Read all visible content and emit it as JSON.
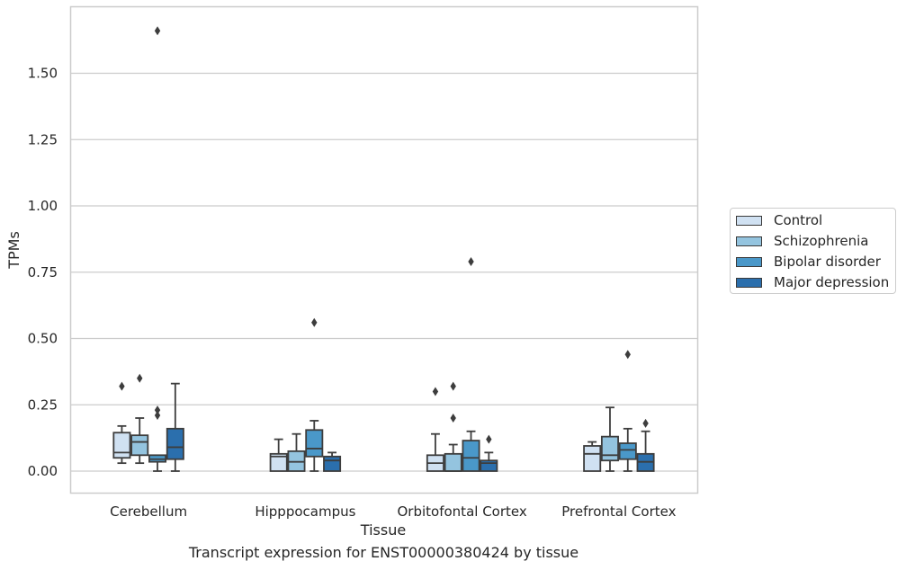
{
  "chart_data": {
    "type": "box",
    "title": "",
    "caption": "Transcript expression for ENST00000380424 by tissue",
    "xlabel": "Tissue",
    "ylabel": "TPMs",
    "ylim": [
      -0.08,
      1.75
    ],
    "yticks": [
      "0.00",
      "0.25",
      "0.50",
      "0.75",
      "1.00",
      "1.25",
      "1.50"
    ],
    "ytick_values": [
      0,
      0.25,
      0.5,
      0.75,
      1.0,
      1.25,
      1.5
    ],
    "grid": true,
    "legend_position": "right",
    "categories": [
      "Cerebellum",
      "Hipppocampus",
      "Orbitofontal Cortex",
      "Prefrontal Cortex"
    ],
    "series": [
      {
        "name": "Control",
        "color": "#d0e1f2",
        "boxes": [
          {
            "whislo": 0.03,
            "q1": 0.05,
            "med": 0.07,
            "q3": 0.145,
            "whishi": 0.17,
            "fliers": [
              0.32
            ]
          },
          {
            "whislo": 0.0,
            "q1": 0.0,
            "med": 0.055,
            "q3": 0.065,
            "whishi": 0.12,
            "fliers": []
          },
          {
            "whislo": 0.0,
            "q1": 0.0,
            "med": 0.03,
            "q3": 0.06,
            "whishi": 0.14,
            "fliers": [
              0.3
            ]
          },
          {
            "whislo": 0.0,
            "q1": 0.0,
            "med": 0.065,
            "q3": 0.095,
            "whishi": 0.11,
            "fliers": []
          }
        ]
      },
      {
        "name": "Schizophrenia",
        "color": "#94c4df",
        "boxes": [
          {
            "whislo": 0.03,
            "q1": 0.06,
            "med": 0.11,
            "q3": 0.135,
            "whishi": 0.2,
            "fliers": [
              0.35
            ]
          },
          {
            "whislo": 0.0,
            "q1": 0.0,
            "med": 0.035,
            "q3": 0.075,
            "whishi": 0.14,
            "fliers": []
          },
          {
            "whislo": 0.0,
            "q1": 0.0,
            "med": 0.0,
            "q3": 0.065,
            "whishi": 0.1,
            "fliers": [
              0.2,
              0.32
            ]
          },
          {
            "whislo": 0.0,
            "q1": 0.04,
            "med": 0.06,
            "q3": 0.13,
            "whishi": 0.24,
            "fliers": []
          }
        ]
      },
      {
        "name": "Bipolar disorder",
        "color": "#4a98c9",
        "boxes": [
          {
            "whislo": 0.0,
            "q1": 0.035,
            "med": 0.045,
            "q3": 0.06,
            "whishi": 0.06,
            "fliers": [
              0.21,
              0.23,
              1.66
            ]
          },
          {
            "whislo": 0.0,
            "q1": 0.055,
            "med": 0.085,
            "q3": 0.155,
            "whishi": 0.19,
            "fliers": [
              0.56
            ]
          },
          {
            "whislo": 0.0,
            "q1": 0.0,
            "med": 0.05,
            "q3": 0.115,
            "whishi": 0.15,
            "fliers": [
              0.79
            ]
          },
          {
            "whislo": 0.0,
            "q1": 0.045,
            "med": 0.08,
            "q3": 0.105,
            "whishi": 0.16,
            "fliers": [
              0.44
            ]
          }
        ]
      },
      {
        "name": "Major depression",
        "color": "#2b6fad",
        "boxes": [
          {
            "whislo": 0.0,
            "q1": 0.045,
            "med": 0.09,
            "q3": 0.16,
            "whishi": 0.33,
            "fliers": []
          },
          {
            "whislo": 0.0,
            "q1": 0.0,
            "med": 0.04,
            "q3": 0.055,
            "whishi": 0.07,
            "fliers": []
          },
          {
            "whislo": 0.0,
            "q1": 0.0,
            "med": 0.03,
            "q3": 0.04,
            "whishi": 0.07,
            "fliers": [
              0.12
            ]
          },
          {
            "whislo": 0.0,
            "q1": 0.0,
            "med": 0.035,
            "q3": 0.065,
            "whishi": 0.15,
            "fliers": [
              0.18
            ]
          }
        ]
      }
    ]
  }
}
